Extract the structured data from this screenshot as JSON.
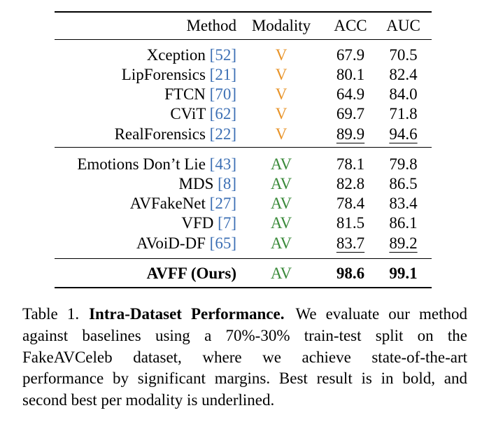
{
  "table": {
    "headers": {
      "method": "Method",
      "modality": "Modality",
      "acc": "ACC",
      "auc": "AUC"
    },
    "groups": [
      {
        "rows": [
          {
            "method": "Xception",
            "cite": "52",
            "modality": "V",
            "acc": "67.9",
            "auc": "70.5",
            "acc_underline": false,
            "auc_underline": false
          },
          {
            "method": "LipForensics",
            "cite": "21",
            "modality": "V",
            "acc": "80.1",
            "auc": "82.4",
            "acc_underline": false,
            "auc_underline": false
          },
          {
            "method": "FTCN",
            "cite": "70",
            "modality": "V",
            "acc": "64.9",
            "auc": "84.0",
            "acc_underline": false,
            "auc_underline": false
          },
          {
            "method": "CViT",
            "cite": "62",
            "modality": "V",
            "acc": "69.7",
            "auc": "71.8",
            "acc_underline": false,
            "auc_underline": false
          },
          {
            "method": "RealForensics",
            "cite": "22",
            "modality": "V",
            "acc": "89.9",
            "auc": "94.6",
            "acc_underline": true,
            "auc_underline": true
          }
        ]
      },
      {
        "rows": [
          {
            "method": "Emotions Don’t Lie",
            "cite": "43",
            "modality": "AV",
            "acc": "78.1",
            "auc": "79.8",
            "acc_underline": false,
            "auc_underline": false
          },
          {
            "method": "MDS",
            "cite": "8",
            "modality": "AV",
            "acc": "82.8",
            "auc": "86.5",
            "acc_underline": false,
            "auc_underline": false
          },
          {
            "method": "AVFakeNet",
            "cite": "27",
            "modality": "AV",
            "acc": "78.4",
            "auc": "83.4",
            "acc_underline": false,
            "auc_underline": false
          },
          {
            "method": "VFD",
            "cite": "7",
            "modality": "AV",
            "acc": "81.5",
            "auc": "86.1",
            "acc_underline": false,
            "auc_underline": false
          },
          {
            "method": "AVoiD-DF",
            "cite": "65",
            "modality": "AV",
            "acc": "83.7",
            "auc": "89.2",
            "acc_underline": true,
            "auc_underline": true
          }
        ]
      }
    ],
    "ours": {
      "method": "AVFF (Ours)",
      "modality": "AV",
      "acc": "98.6",
      "auc": "99.1"
    }
  },
  "caption": {
    "label": "Table 1.",
    "title": "Intra-Dataset Performance.",
    "text": "We evaluate our method against baselines using a 70%-30% train-test split on the FakeAVCeleb dataset, where we achieve state-of-the-art performance by significant margins. Best result is in bold, and second best per modality is underlined."
  },
  "colors": {
    "citation": "#3c6fb4",
    "modality_v": "#e8942a",
    "modality_av": "#3a8a3a"
  }
}
